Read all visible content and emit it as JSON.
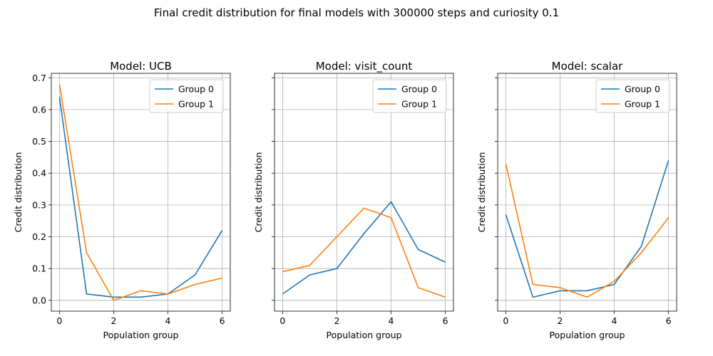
{
  "figure_title": "Final credit distribution for final models with 300000 steps and curiosity 0.1",
  "chart_data": [
    {
      "type": "line",
      "title": "Model: UCB",
      "xlabel": "Population group",
      "ylabel": "Credit distribution",
      "x": [
        0,
        1,
        2,
        3,
        4,
        5,
        6
      ],
      "xticks": [
        "0",
        "2",
        "4",
        "6"
      ],
      "yticks": [
        "0.0",
        "0.1",
        "0.2",
        "0.3",
        "0.4",
        "0.5",
        "0.6",
        "0.7"
      ],
      "xlim": [
        -0.3,
        6.3
      ],
      "ylim": [
        -0.034,
        0.714
      ],
      "grid": true,
      "legend": "top-right",
      "series": [
        {
          "name": "Group 0",
          "color": "#1f77b4",
          "values": [
            0.64,
            0.02,
            0.01,
            0.01,
            0.02,
            0.08,
            0.22
          ]
        },
        {
          "name": "Group 1",
          "color": "#ff7f0e",
          "values": [
            0.68,
            0.15,
            0.0,
            0.03,
            0.02,
            0.05,
            0.07
          ]
        }
      ]
    },
    {
      "type": "line",
      "title": "Model: visit_count",
      "xlabel": "Population group",
      "ylabel": "Credit distribution",
      "x": [
        0,
        1,
        2,
        3,
        4,
        5,
        6
      ],
      "xticks": [
        "0",
        "2",
        "4",
        "6"
      ],
      "yticks": [],
      "xlim": [
        -0.3,
        6.3
      ],
      "ylim": [
        -0.034,
        0.714
      ],
      "grid": true,
      "legend": "top-right",
      "series": [
        {
          "name": "Group 0",
          "color": "#1f77b4",
          "values": [
            0.02,
            0.08,
            0.1,
            0.21,
            0.31,
            0.16,
            0.12
          ]
        },
        {
          "name": "Group 1",
          "color": "#ff7f0e",
          "values": [
            0.09,
            0.11,
            0.2,
            0.29,
            0.26,
            0.04,
            0.01
          ]
        }
      ]
    },
    {
      "type": "line",
      "title": "Model: scalar",
      "xlabel": "Population group",
      "ylabel": "Credit distribution",
      "x": [
        0,
        1,
        2,
        3,
        4,
        5,
        6
      ],
      "xticks": [
        "0",
        "2",
        "4",
        "6"
      ],
      "yticks": [],
      "xlim": [
        -0.3,
        6.3
      ],
      "ylim": [
        -0.034,
        0.714
      ],
      "grid": true,
      "legend": "top-right",
      "series": [
        {
          "name": "Group 0",
          "color": "#1f77b4",
          "values": [
            0.27,
            0.01,
            0.03,
            0.03,
            0.05,
            0.17,
            0.44
          ]
        },
        {
          "name": "Group 1",
          "color": "#ff7f0e",
          "values": [
            0.43,
            0.05,
            0.04,
            0.01,
            0.06,
            0.15,
            0.26
          ]
        }
      ]
    }
  ]
}
